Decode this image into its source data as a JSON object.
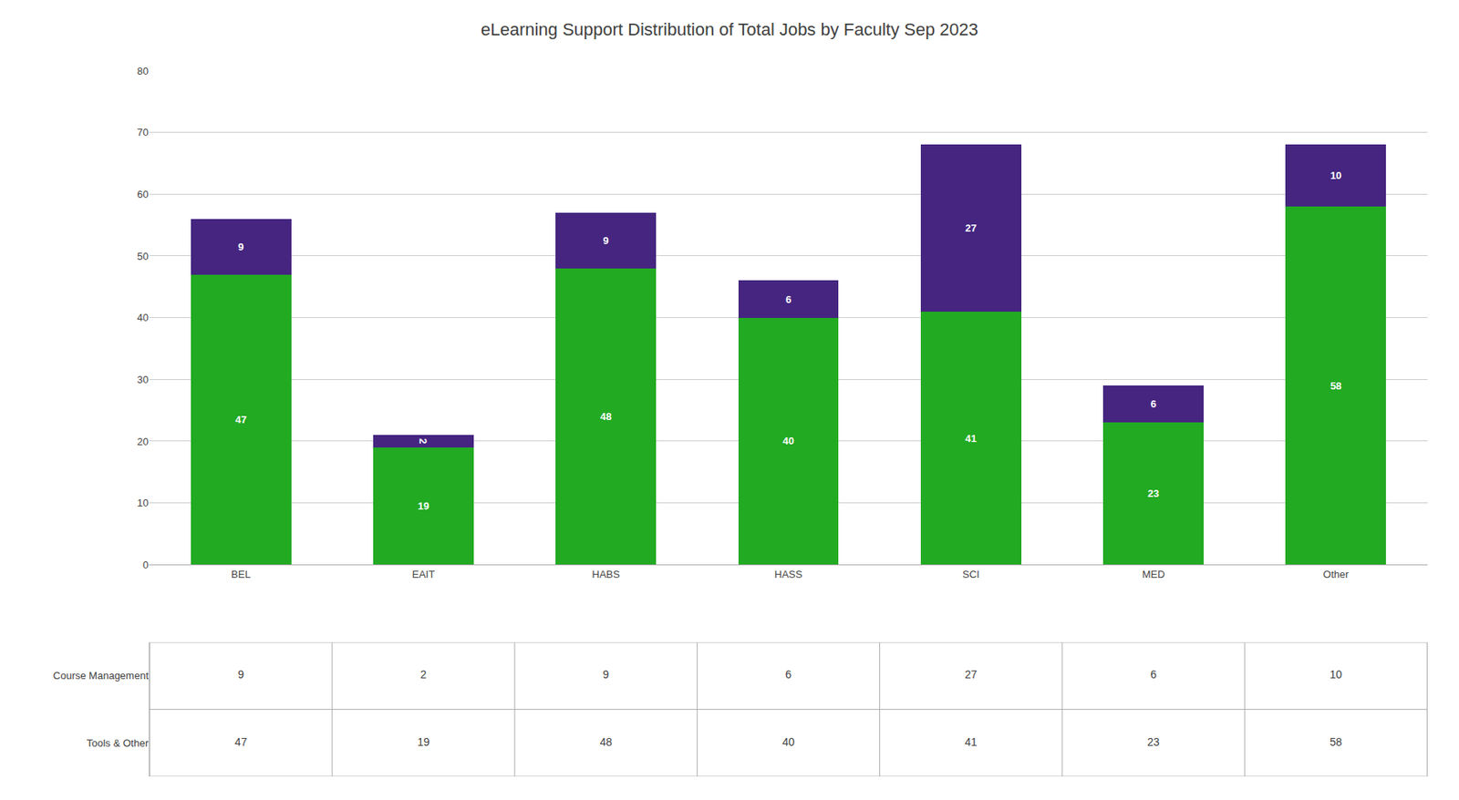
{
  "chart_data": {
    "type": "bar",
    "title": "eLearning Support Distribution of Total Jobs by Faculty Sep 2023",
    "categories": [
      "BEL",
      "EAIT",
      "HABS",
      "HASS",
      "SCI",
      "MED",
      "Other"
    ],
    "series": [
      {
        "name": "Tools & Other",
        "color": "#22aa22",
        "values": [
          47,
          19,
          48,
          40,
          41,
          23,
          58
        ]
      },
      {
        "name": "Course Management",
        "color": "#452580",
        "values": [
          9,
          2,
          9,
          6,
          27,
          6,
          10
        ]
      }
    ],
    "stacked": true,
    "data_labels": true,
    "ylim": [
      0,
      80
    ],
    "yticks": [
      0,
      10,
      20,
      30,
      40,
      50,
      60,
      70,
      80
    ],
    "grid": true
  }
}
